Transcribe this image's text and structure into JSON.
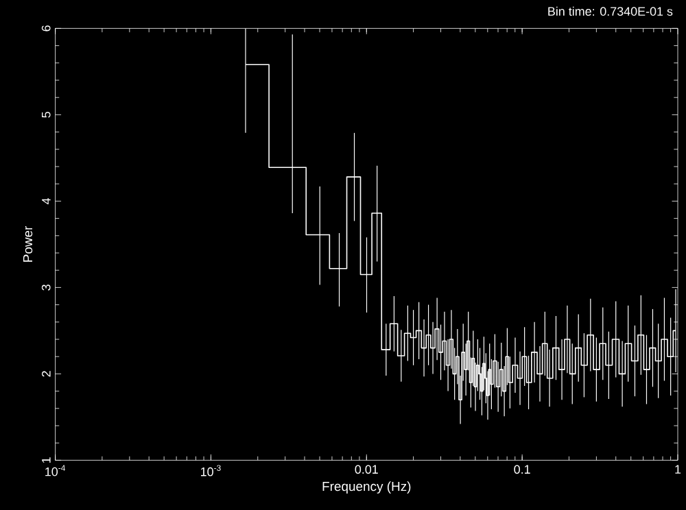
{
  "chart_data": {
    "type": "step",
    "xlabel": "Frequency (Hz)",
    "ylabel": "Power",
    "annotations": [
      "Bin time:   0.7340E-01 s"
    ],
    "log": "x",
    "grid": false,
    "marker": "none",
    "line_style": "solid",
    "xlim": [
      0.0001,
      1
    ],
    "ylim": [
      1,
      6
    ],
    "xticks": [
      {
        "value": 0.0001,
        "label": "10$^{-4}$"
      },
      {
        "value": 0.001,
        "label": "10$^{-3}$"
      },
      0.01,
      0.1,
      1
    ],
    "yticks": [
      1,
      2,
      3,
      4,
      5,
      6
    ],
    "series": [
      {
        "color": "#ffffff",
        "x": [
          0.00167,
          0.00334,
          0.00501,
          0.00668,
          0.00835,
          0.01002,
          0.01169,
          0.01336,
          0.01503,
          0.0167,
          0.0184,
          0.02,
          0.0217,
          0.0234,
          0.025,
          0.0267,
          0.0284,
          0.03,
          0.0317,
          0.0334,
          0.0351,
          0.0368,
          0.0384,
          0.0401,
          0.0418,
          0.0435,
          0.0451,
          0.0468,
          0.0485,
          0.0501,
          0.0518,
          0.0535,
          0.0551,
          0.0568,
          0.0585,
          0.0601,
          0.0618,
          0.0635,
          0.0668,
          0.0701,
          0.0735,
          0.0768,
          0.0802,
          0.0835,
          0.0902,
          0.0969,
          0.1036,
          0.11,
          0.12,
          0.13,
          0.14,
          0.15,
          0.165,
          0.18,
          0.195,
          0.21,
          0.23,
          0.25,
          0.275,
          0.3,
          0.33,
          0.36,
          0.4,
          0.44,
          0.48,
          0.53,
          0.58,
          0.63,
          0.69,
          0.75,
          0.82,
          0.9,
          0.97
        ],
        "values": [
          5.58,
          4.39,
          3.61,
          3.22,
          4.28,
          3.15,
          3.86,
          2.28,
          2.58,
          2.21,
          2.47,
          2.42,
          2.5,
          2.3,
          2.45,
          2.3,
          2.52,
          2.25,
          2.38,
          2.1,
          2.4,
          2.0,
          2.2,
          1.7,
          2.25,
          2.05,
          2.38,
          1.9,
          2.18,
          1.85,
          2.1,
          2.0,
          1.8,
          2.12,
          1.95,
          1.75,
          2.05,
          1.88,
          2.15,
          1.85,
          2.05,
          1.8,
          2.2,
          1.9,
          2.1,
          1.95,
          2.2,
          1.9,
          2.25,
          2.0,
          2.35,
          1.95,
          2.3,
          2.05,
          2.4,
          2.0,
          2.3,
          2.1,
          2.45,
          2.05,
          2.35,
          2.1,
          2.4,
          2.0,
          2.35,
          2.15,
          2.45,
          2.05,
          2.3,
          2.15,
          2.4,
          2.2,
          2.5
        ],
        "errors": [
          [
            4.79,
            6.0
          ],
          [
            3.86,
            5.93
          ],
          [
            3.03,
            4.17
          ],
          [
            2.78,
            3.63
          ],
          [
            3.77,
            4.79
          ],
          [
            2.71,
            3.58
          ],
          [
            3.3,
            4.41
          ],
          0.3,
          0.32,
          0.3,
          0.32,
          0.32,
          0.33,
          0.33,
          0.35,
          0.3,
          0.36,
          0.32,
          0.34,
          0.3,
          0.34,
          0.3,
          0.32,
          0.28,
          0.33,
          0.3,
          0.34,
          0.29,
          0.32,
          0.28,
          0.3,
          0.3,
          0.28,
          0.31,
          0.29,
          0.28,
          0.3,
          0.29,
          0.31,
          0.29,
          0.31,
          0.29,
          0.33,
          0.3,
          0.32,
          0.31,
          0.34,
          0.31,
          0.35,
          0.32,
          0.37,
          0.33,
          0.37,
          0.35,
          0.39,
          0.35,
          0.39,
          0.37,
          0.42,
          0.37,
          0.42,
          0.39,
          0.44,
          0.38,
          0.44,
          0.41,
          0.46,
          0.4,
          0.45,
          0.43,
          0.48,
          0.45,
          0.48
        ]
      }
    ]
  }
}
